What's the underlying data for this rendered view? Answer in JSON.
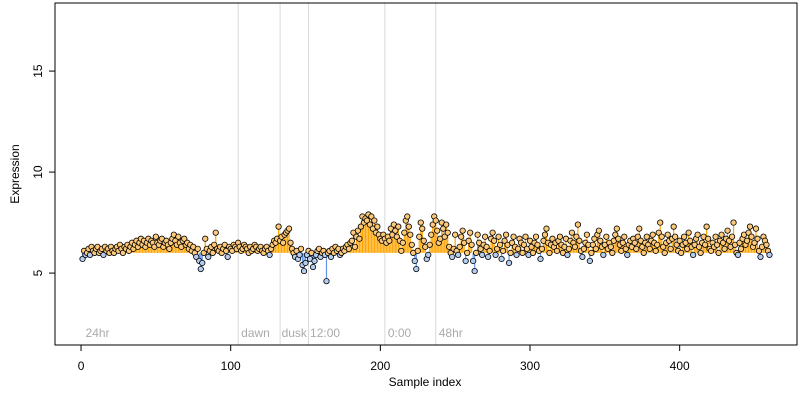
{
  "chart_data": {
    "type": "scatter",
    "xlabel": "Sample index",
    "ylabel": "Expression",
    "xlim": [
      -17.4,
      478.4
    ],
    "ylim": [
      1.44,
      18.37
    ],
    "xticks": [
      0,
      100,
      200,
      300,
      400
    ],
    "yticks": [
      5,
      10,
      15
    ],
    "baseline": 6,
    "colors": {
      "above": "#ffa500",
      "below": "#6495ed",
      "above_fill": "#fdc97a",
      "below_fill": "#b4cdef",
      "vline": "#d9d9d9",
      "annotation": "#aaaaaa"
    },
    "vlines": [
      105,
      133,
      152,
      203,
      237
    ],
    "annotations": [
      {
        "x": 3,
        "y": 2,
        "text": "24hr"
      },
      {
        "x": 107,
        "y": 2,
        "text": "dawn"
      },
      {
        "x": 134,
        "y": 2,
        "text": "dusk"
      },
      {
        "x": 153,
        "y": 2,
        "text": "12:00"
      },
      {
        "x": 205,
        "y": 2,
        "text": "0:00"
      },
      {
        "x": 239,
        "y": 2,
        "text": "48hr"
      }
    ],
    "values": [
      5.7,
      6.1,
      5.9,
      6.0,
      6.2,
      5.9,
      6.3,
      6.1,
      6.0,
      6.2,
      6.3,
      6.0,
      6.1,
      6.2,
      5.9,
      6.3,
      6.1,
      6.2,
      6.0,
      6.3,
      6.1,
      6.0,
      6.2,
      6.3,
      6.1,
      6.4,
      6.2,
      6.0,
      6.3,
      6.2,
      6.4,
      6.1,
      6.3,
      6.5,
      6.2,
      6.4,
      6.6,
      6.3,
      6.5,
      6.7,
      6.4,
      6.6,
      6.3,
      6.5,
      6.7,
      6.4,
      6.6,
      6.5,
      6.3,
      6.8,
      6.5,
      6.4,
      6.6,
      6.7,
      6.3,
      6.5,
      6.6,
      6.4,
      6.2,
      6.5,
      6.7,
      6.9,
      6.6,
      6.4,
      6.8,
      6.5,
      6.3,
      6.6,
      6.7,
      6.4,
      6.5,
      6.2,
      6.4,
      6.1,
      6.3,
      6.0,
      5.8,
      6.2,
      5.6,
      5.2,
      5.5,
      6.0,
      6.7,
      6.2,
      5.8,
      6.1,
      6.3,
      6.0,
      6.4,
      7.0,
      6.2,
      6.1,
      6.3,
      6.0,
      6.2,
      6.4,
      6.1,
      5.8,
      6.3,
      6.2,
      6.1,
      6.4,
      6.3,
      6.2,
      6.5,
      6.3,
      6.1,
      6.2,
      6.4,
      6.3,
      6.2,
      6.0,
      6.3,
      6.1,
      6.2,
      6.4,
      6.3,
      6.1,
      6.2,
      6.3,
      6.1,
      6.0,
      6.2,
      6.3,
      6.1,
      5.9,
      6.2,
      6.4,
      6.6,
      6.5,
      6.7,
      7.3,
      6.6,
      6.8,
      6.5,
      6.9,
      7.0,
      7.1,
      7.2,
      6.5,
      6.2,
      6.0,
      5.8,
      6.1,
      5.7,
      5.9,
      6.2,
      5.4,
      5.1,
      5.5,
      5.9,
      6.1,
      5.7,
      6.0,
      5.3,
      5.6,
      5.9,
      6.1,
      6.2,
      5.8,
      6.0,
      6.1,
      5.9,
      4.6,
      6.0,
      6.1,
      5.8,
      6.2,
      6.0,
      6.3,
      6.1,
      6.2,
      5.9,
      6.0,
      6.2,
      6.1,
      6.3,
      6.4,
      6.2,
      6.5,
      6.6,
      7.0,
      6.3,
      6.8,
      7.1,
      6.7,
      7.3,
      7.8,
      7.5,
      7.7,
      7.6,
      7.9,
      7.4,
      7.8,
      7.2,
      7.6,
      7.0,
      7.3,
      6.9,
      6.7,
      6.6,
      6.9,
      6.7,
      6.5,
      6.8,
      6.6,
      7.2,
      6.9,
      7.4,
      7.1,
      6.8,
      7.3,
      6.6,
      6.1,
      6.5,
      7.0,
      7.6,
      7.8,
      7.3,
      6.9,
      6.4,
      6.0,
      5.6,
      5.2,
      6.1,
      6.8,
      7.5,
      7.2,
      6.6,
      6.3,
      5.7,
      5.9,
      6.4,
      6.9,
      7.4,
      7.8,
      7.6,
      7.1,
      6.5,
      6.7,
      7.5,
      7.2,
      6.8,
      7.4,
      7.0,
      6.3,
      6.0,
      5.8,
      6.2,
      6.9,
      6.1,
      5.9,
      6.3,
      6.8,
      7.1,
      6.5,
      5.6,
      6.0,
      6.6,
      7.0,
      6.4,
      5.6,
      5.1,
      6.0,
      6.9,
      6.5,
      6.2,
      5.9,
      6.4,
      6.8,
      6.3,
      5.8,
      6.1,
      6.7,
      7.0,
      6.6,
      5.9,
      6.2,
      6.8,
      6.4,
      5.7,
      6.1,
      6.6,
      6.9,
      6.4,
      5.5,
      6.0,
      6.5,
      6.8,
      6.3,
      5.9,
      6.2,
      6.7,
      6.5,
      6.0,
      6.4,
      6.8,
      6.2,
      5.9,
      6.6,
      6.3,
      6.0,
      6.5,
      6.8,
      6.4,
      6.1,
      5.7,
      6.2,
      6.6,
      6.9,
      7.2,
      6.5,
      6.0,
      6.4,
      6.7,
      6.3,
      6.5,
      6.1,
      6.6,
      6.8,
      6.4,
      6.0,
      6.3,
      6.7,
      5.9,
      6.2,
      6.6,
      7.0,
      6.5,
      6.3,
      6.8,
      7.4,
      6.6,
      6.1,
      5.8,
      6.2,
      6.5,
      6.9,
      6.4,
      5.6,
      6.0,
      6.4,
      6.7,
      6.2,
      6.9,
      7.1,
      6.6,
      6.3,
      5.9,
      6.4,
      6.8,
      6.2,
      6.5,
      6.3,
      6.0,
      6.6,
      6.9,
      7.2,
      6.7,
      6.4,
      6.1,
      6.5,
      6.8,
      6.2,
      5.9,
      6.4,
      6.6,
      6.3,
      6.7,
      6.5,
      6.2,
      6.8,
      7.2,
      6.6,
      6.3,
      6.0,
      6.5,
      6.8,
      6.4,
      6.2,
      6.6,
      6.9,
      6.5,
      6.1,
      6.4,
      7.0,
      7.5,
      6.8,
      6.3,
      6.0,
      6.5,
      6.9,
      6.6,
      6.2,
      6.7,
      7.3,
      6.8,
      6.4,
      6.1,
      6.6,
      6.0,
      6.4,
      6.8,
      6.5,
      6.2,
      7.0,
      6.6,
      6.3,
      5.9,
      6.4,
      6.7,
      6.9,
      6.3,
      6.0,
      6.5,
      6.8,
      6.4,
      7.3,
      6.7,
      6.2,
      6.1,
      6.5,
      6.3,
      6.8,
      6.4,
      6.0,
      6.6,
      6.9,
      6.5,
      6.2,
      6.7,
      7.1,
      6.6,
      6.3,
      6.8,
      7.5,
      6.4,
      6.0,
      5.9,
      6.5,
      6.2,
      6.7,
      6.9,
      6.4,
      6.6,
      7.0,
      7.3,
      6.8,
      6.3,
      6.5,
      7.2,
      6.7,
      6.1,
      5.8,
      6.3,
      6.8,
      6.6,
      6.4,
      6.1,
      5.9
    ]
  }
}
